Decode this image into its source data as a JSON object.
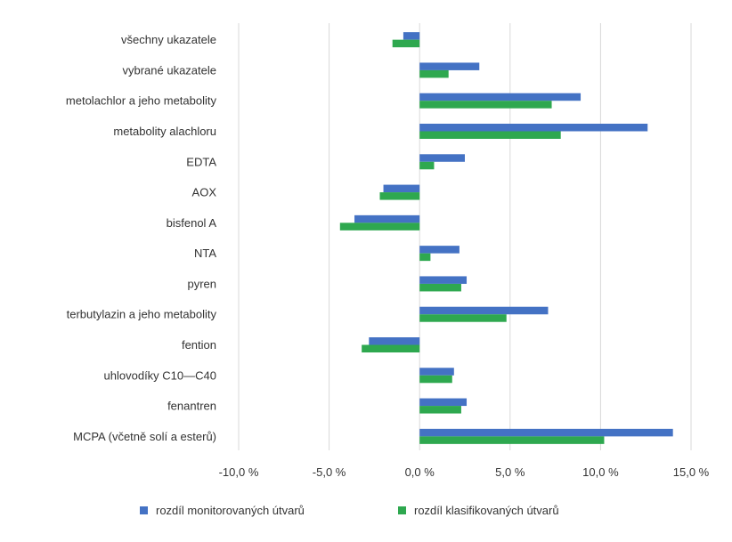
{
  "chart_data": {
    "type": "bar",
    "orientation": "horizontal",
    "title": "",
    "xlabel": "",
    "ylabel": "",
    "xlim": [
      -10,
      15
    ],
    "xticks": [
      -10,
      -5,
      0,
      5,
      10,
      15
    ],
    "xtick_labels": [
      "-10,0 %",
      "-5,0 %",
      "0,0 %",
      "5,0 %",
      "10,0 %",
      "15,0 %"
    ],
    "grid": true,
    "legend_position": "bottom",
    "categories": [
      "všechny ukazatele",
      "vybrané ukazatele",
      "metolachlor a jeho metabolity",
      "metabolity alachloru",
      "EDTA",
      "AOX",
      "bisfenol A",
      "NTA",
      "pyren",
      "terbutylazin a jeho metabolity",
      "fention",
      "uhlovodíky C10—C40",
      "fenantren",
      "MCPA (včetně solí a esterů)"
    ],
    "series": [
      {
        "name": "rozdíl monitorovaných útvarů",
        "color": "#4472C4",
        "values": [
          -0.9,
          3.3,
          8.9,
          12.6,
          2.5,
          -2.0,
          -3.6,
          2.2,
          2.6,
          7.1,
          -2.8,
          1.9,
          2.6,
          14.0
        ]
      },
      {
        "name": "rozdíl klasifikovaných útvarů",
        "color": "#2EA84F",
        "values": [
          -1.5,
          1.6,
          7.3,
          7.8,
          0.8,
          -2.2,
          -4.4,
          0.6,
          2.3,
          4.8,
          -3.2,
          1.8,
          2.3,
          10.2
        ]
      }
    ]
  }
}
